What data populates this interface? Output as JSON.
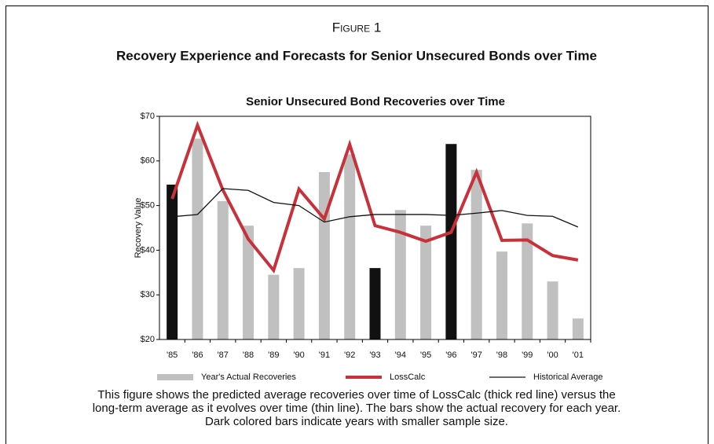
{
  "figure_label": "Figure 1",
  "heading": "Recovery Experience and Forecasts for Senior Unsecured Bonds over Time",
  "caption": [
    "This figure shows the predicted average recoveries over time of LossCalc (thick red line) versus the",
    "long-term average as it evolves over time (thin line). The bars show the actual recovery for each year.",
    "Dark colored bars indicate years with smaller sample size."
  ],
  "chart_data": {
    "type": "bar",
    "title": "Senior Unsecured Bond Recoveries over Time",
    "y_label": "Recovery Value",
    "categories": [
      "'85",
      "'86",
      "'87",
      "'88",
      "'89",
      "'90",
      "'91",
      "'92",
      "'93",
      "'94",
      "'95",
      "'96",
      "'97",
      "'98",
      "'99",
      "'00",
      "'01"
    ],
    "series": [
      {
        "name": "Year's Actual Recoveries",
        "type": "bar",
        "color": "#c0c0c0",
        "colors": [
          "#111111",
          "#c0c0c0",
          "#c0c0c0",
          "#c0c0c0",
          "#c0c0c0",
          "#c0c0c0",
          "#c0c0c0",
          "#c0c0c0",
          "#111111",
          "#c0c0c0",
          "#c0c0c0",
          "#111111",
          "#c0c0c0",
          "#c0c0c0",
          "#c0c0c0",
          "#c0c0c0",
          "#c0c0c0"
        ],
        "values": [
          54.7,
          65,
          51,
          45.5,
          34.5,
          36,
          57.5,
          61.5,
          36,
          49,
          45.5,
          63.8,
          58,
          39.7,
          46,
          33,
          24.7
        ]
      },
      {
        "name": "LossCalc",
        "type": "line",
        "color": "#c8313a",
        "width": 4,
        "values": [
          51.5,
          68,
          53.5,
          42.5,
          35.5,
          53.7,
          47,
          63.7,
          45.5,
          44,
          42,
          44,
          57.5,
          42.2,
          42.3,
          38.8,
          37.8
        ]
      },
      {
        "name": "Historical Average",
        "type": "line",
        "color": "#111111",
        "width": 1.3,
        "values": [
          47.5,
          48,
          53.8,
          53.4,
          50.7,
          50,
          46.3,
          47.5,
          48,
          48,
          48,
          47.8,
          48.3,
          48.9,
          47.8,
          47.6,
          45.2
        ]
      }
    ],
    "ylim": [
      20,
      70
    ],
    "yticks": [
      {
        "value": 20,
        "label": "$20"
      },
      {
        "value": 30,
        "label": "$30"
      },
      {
        "value": 40,
        "label": "$40"
      },
      {
        "value": 50,
        "label": "$50"
      },
      {
        "value": 60,
        "label": "$60"
      },
      {
        "value": 70,
        "label": "$70"
      }
    ],
    "legend": "bottom"
  }
}
